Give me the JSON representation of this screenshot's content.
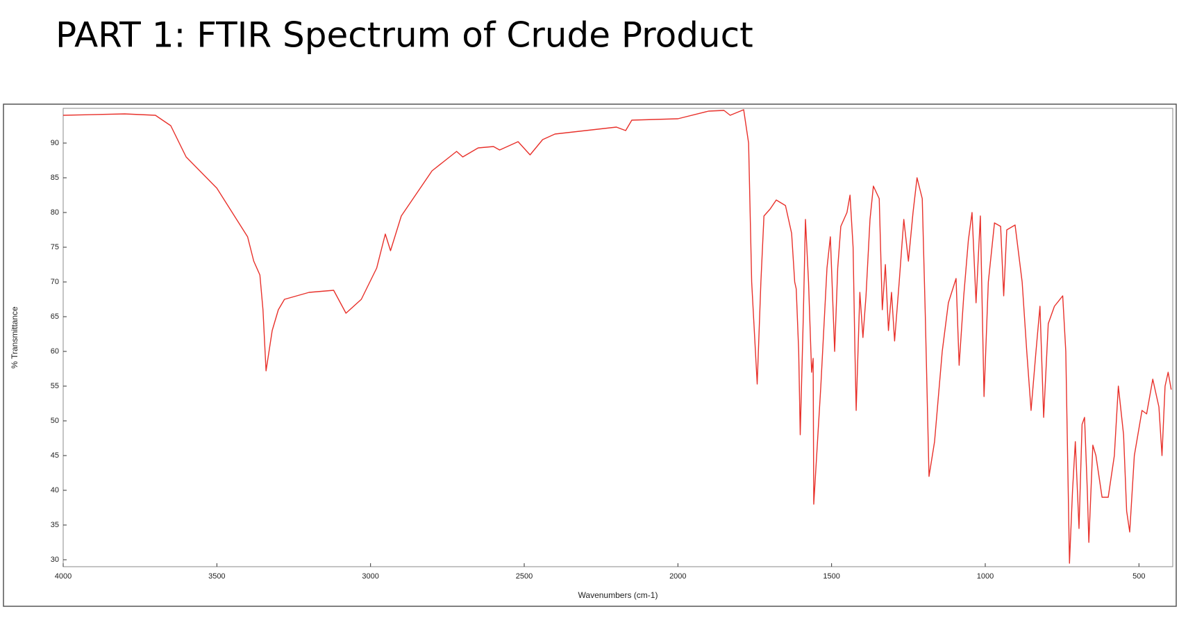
{
  "chart_data": {
    "type": "line",
    "title": "PART 1: FTIR Spectrum of Crude Product",
    "x_label": "Wavenumbers (cm-1)",
    "y_label": "% Transmittance",
    "color": "#e8302a",
    "xlim": [
      4000,
      390
    ],
    "ylim": [
      29,
      95
    ],
    "xticks": [
      4000,
      3500,
      3000,
      2500,
      2000,
      1500,
      1000,
      500
    ],
    "yticks": [
      30,
      35,
      40,
      45,
      50,
      55,
      60,
      65,
      70,
      75,
      80,
      85,
      90
    ],
    "x": [
      4000,
      3800,
      3700,
      3650,
      3600,
      3500,
      3400,
      3380,
      3360,
      3350,
      3340,
      3320,
      3300,
      3280,
      3200,
      3120,
      3080,
      3030,
      2980,
      2952,
      2935,
      2900,
      2800,
      2720,
      2700,
      2650,
      2600,
      2580,
      2520,
      2481,
      2440,
      2400,
      2300,
      2200,
      2170,
      2150,
      2000,
      1900,
      1850,
      1830,
      1786,
      1770,
      1760,
      1742,
      1730,
      1720,
      1700,
      1680,
      1650,
      1630,
      1620,
      1615,
      1607,
      1602,
      1592,
      1585,
      1575,
      1565,
      1560,
      1558,
      1535,
      1515,
      1504,
      1490,
      1480,
      1470,
      1450,
      1440,
      1430,
      1424,
      1420,
      1408,
      1398,
      1388,
      1375,
      1364,
      1345,
      1335,
      1325,
      1315,
      1305,
      1295,
      1280,
      1265,
      1250,
      1235,
      1222,
      1205,
      1195,
      1183,
      1165,
      1140,
      1120,
      1095,
      1085,
      1070,
      1055,
      1043,
      1030,
      1016,
      1004,
      990,
      970,
      950,
      940,
      930,
      903,
      880,
      865,
      851,
      835,
      822,
      810,
      795,
      775,
      748,
      738,
      726,
      716,
      707,
      695,
      685,
      677,
      668,
      663,
      650,
      640,
      620,
      600,
      580,
      567,
      550,
      540,
      530,
      515,
      490,
      475,
      455,
      435,
      425,
      415,
      405,
      395
    ],
    "values": [
      94,
      94.2,
      94,
      92.5,
      88,
      83.5,
      76.5,
      73,
      71,
      66,
      57.2,
      63,
      66,
      67.5,
      68.5,
      68.8,
      65.5,
      67.5,
      72,
      76.9,
      74.5,
      79.5,
      86,
      88.8,
      88,
      89.3,
      89.5,
      89,
      90.2,
      88.3,
      90.5,
      91.3,
      91.8,
      92.3,
      91.8,
      93.3,
      93.5,
      94.6,
      94.7,
      94,
      94.8,
      90,
      70,
      55.3,
      70,
      79.5,
      80.5,
      81.8,
      81,
      77,
      70,
      69,
      60,
      48,
      65,
      79,
      70,
      57,
      59,
      38,
      55,
      72,
      76.5,
      60,
      72,
      78,
      80,
      82.5,
      75,
      60,
      51.5,
      68.5,
      62,
      68,
      79,
      83.8,
      82,
      66,
      72.5,
      63,
      68.5,
      61.5,
      70,
      79,
      73,
      80,
      85,
      82,
      65,
      42,
      47,
      60,
      67,
      70.5,
      58,
      68,
      76,
      80,
      67,
      79.5,
      53.5,
      70,
      78.5,
      78,
      68,
      77.5,
      78.2,
      70,
      60,
      51.5,
      60,
      66.5,
      50.5,
      64,
      66.5,
      68,
      60,
      29.5,
      40,
      47,
      34.5,
      49.5,
      50.5,
      40,
      32.5,
      46.5,
      45,
      39,
      39,
      45,
      55,
      48,
      37,
      34,
      45,
      51.5,
      51,
      56,
      52,
      45,
      55,
      57,
      54.5
    ]
  }
}
